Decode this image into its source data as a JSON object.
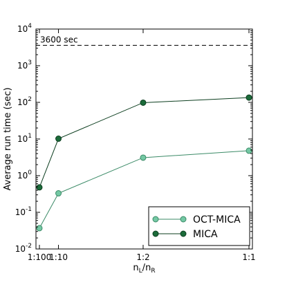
{
  "chart_data": {
    "type": "line",
    "title": "",
    "xlabel": "n_L/n_R",
    "xlabel_parts": {
      "main_1": "n",
      "sub_1": "L",
      "sep": "/",
      "main_2": "n",
      "sub_2": "R"
    },
    "ylabel": "Average run time (sec)",
    "y_scale": "log",
    "ylim": [
      0.01,
      10000
    ],
    "x_scale": "reciprocal",
    "xlim": [
      100,
      1
    ],
    "categories": [
      "1:100",
      "1:10",
      "1:2",
      "1:1"
    ],
    "x": [
      100,
      10,
      2,
      1
    ],
    "y_ticks": [
      {
        "value": 0.01,
        "base": "10",
        "exp": "-2"
      },
      {
        "value": 0.1,
        "base": "10",
        "exp": "-1"
      },
      {
        "value": 1,
        "base": "10",
        "exp": "0"
      },
      {
        "value": 10,
        "base": "10",
        "exp": "1"
      },
      {
        "value": 100,
        "base": "10",
        "exp": "2"
      },
      {
        "value": 1000,
        "base": "10",
        "exp": "3"
      },
      {
        "value": 10000,
        "base": "10",
        "exp": "4"
      }
    ],
    "series": [
      {
        "name": "OCT-MICA",
        "values": [
          0.037,
          0.33,
          3.1,
          4.8
        ],
        "color": "#74c8a4",
        "stroke": "#3a8a66"
      },
      {
        "name": "MICA",
        "values": [
          0.48,
          10.2,
          98,
          135
        ],
        "color": "#1b6b3a",
        "stroke": "#0b3d1e"
      }
    ],
    "reference_line": {
      "value": 3600,
      "label": "3600 sec",
      "style": "dashed"
    },
    "legend": {
      "position": "bottom-right",
      "entries": [
        "OCT-MICA",
        "MICA"
      ]
    },
    "grid": false
  }
}
